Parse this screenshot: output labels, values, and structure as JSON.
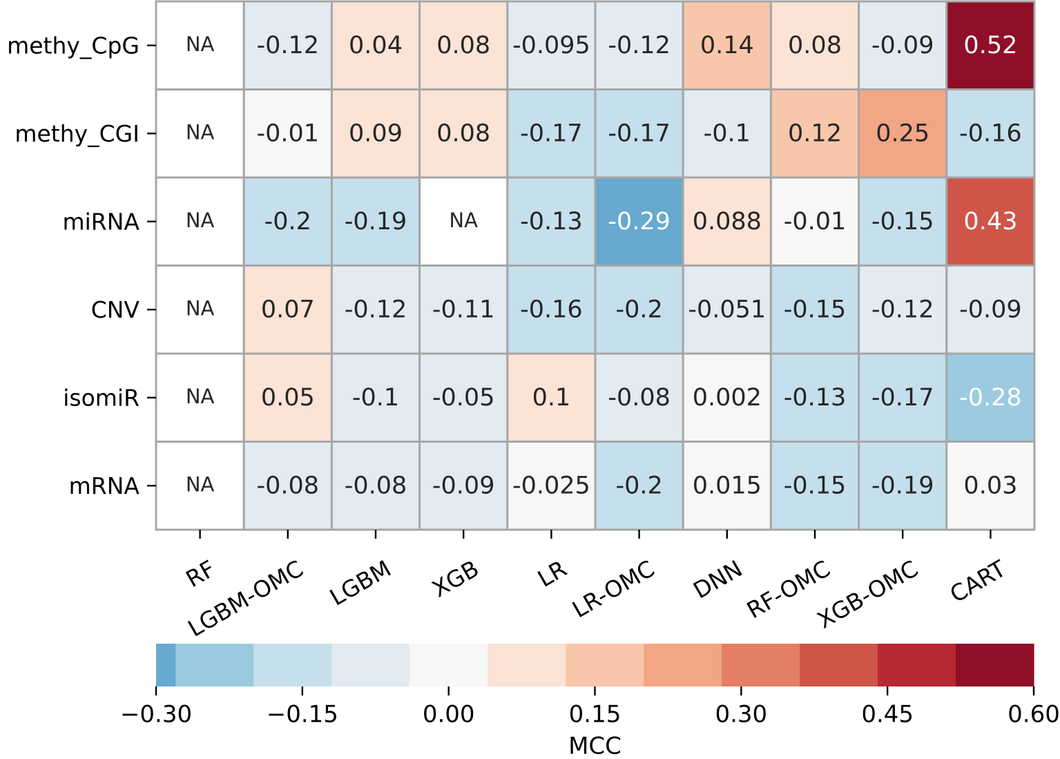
{
  "chart_data": {
    "type": "heatmap",
    "rows": [
      "methy_CpG",
      "methy_CGI",
      "miRNA",
      "CNV",
      "isomiR",
      "mRNA"
    ],
    "columns": [
      "RF",
      "LGBM-OMC",
      "LGBM",
      "XGB",
      "LR",
      "LR-OMC",
      "DNN",
      "RF-OMC",
      "XGB-OMC",
      "CART"
    ],
    "values": [
      [
        null,
        -0.12,
        0.04,
        0.08,
        -0.095,
        -0.12,
        0.14,
        0.08,
        -0.09,
        0.52
      ],
      [
        null,
        -0.01,
        0.09,
        0.08,
        -0.17,
        -0.17,
        -0.1,
        0.12,
        0.25,
        -0.16
      ],
      [
        null,
        -0.2,
        -0.19,
        null,
        -0.13,
        -0.29,
        0.088,
        -0.01,
        -0.15,
        0.43
      ],
      [
        null,
        0.07,
        -0.12,
        -0.11,
        -0.16,
        -0.2,
        -0.051,
        -0.15,
        -0.12,
        -0.09
      ],
      [
        null,
        0.05,
        -0.1,
        -0.05,
        0.1,
        -0.08,
        0.002,
        -0.13,
        -0.17,
        -0.28
      ],
      [
        null,
        -0.08,
        -0.08,
        -0.09,
        -0.025,
        -0.2,
        0.015,
        -0.15,
        -0.19,
        0.03
      ]
    ],
    "labels": [
      [
        "NA",
        "-0.12",
        "0.04",
        "0.08",
        "-0.095",
        "-0.12",
        "0.14",
        "0.08",
        "-0.09",
        "0.52"
      ],
      [
        "NA",
        "-0.01",
        "0.09",
        "0.08",
        "-0.17",
        "-0.17",
        "-0.1",
        "0.12",
        "0.25",
        "-0.16"
      ],
      [
        "NA",
        "-0.2",
        "-0.19",
        "NA",
        "-0.13",
        "-0.29",
        "0.088",
        "-0.01",
        "-0.15",
        "0.43"
      ],
      [
        "NA",
        "0.07",
        "-0.12",
        "-0.11",
        "-0.16",
        "-0.2",
        "-0.051",
        "-0.15",
        "-0.12",
        "-0.09"
      ],
      [
        "NA",
        "0.05",
        "-0.1",
        "-0.05",
        "0.1",
        "-0.08",
        "0.002",
        "-0.13",
        "-0.17",
        "-0.28"
      ],
      [
        "NA",
        "-0.08",
        "-0.08",
        "-0.09",
        "-0.025",
        "-0.2",
        "0.015",
        "-0.15",
        "-0.19",
        "0.03"
      ]
    ],
    "colorbar": {
      "label": "MCC",
      "range": [
        -0.3,
        0.6
      ],
      "bounds": [
        -0.3,
        -0.28,
        -0.2,
        -0.12,
        -0.04,
        0.04,
        0.12,
        0.2,
        0.28,
        0.36,
        0.44,
        0.52,
        0.6
      ],
      "colors": [
        "#67a9cf",
        "#9ccae0",
        "#c5dfec",
        "#e1ebf1",
        "#f7f7f7",
        "#fbe3d6",
        "#f8c6ab",
        "#f2a685",
        "#e37f66",
        "#cf5548",
        "#b82832",
        "#8f0e28"
      ],
      "ticks": [
        -0.3,
        -0.15,
        0.0,
        0.15,
        0.3,
        0.45,
        0.6
      ],
      "tick_labels": [
        "−0.30",
        "−0.15",
        "0.00",
        "0.15",
        "0.30",
        "0.45",
        "0.60"
      ]
    },
    "na_color": "#ffffff",
    "grid_color": "#a6a6a6",
    "text_dark": "#262626",
    "text_light": "#ffffff"
  }
}
